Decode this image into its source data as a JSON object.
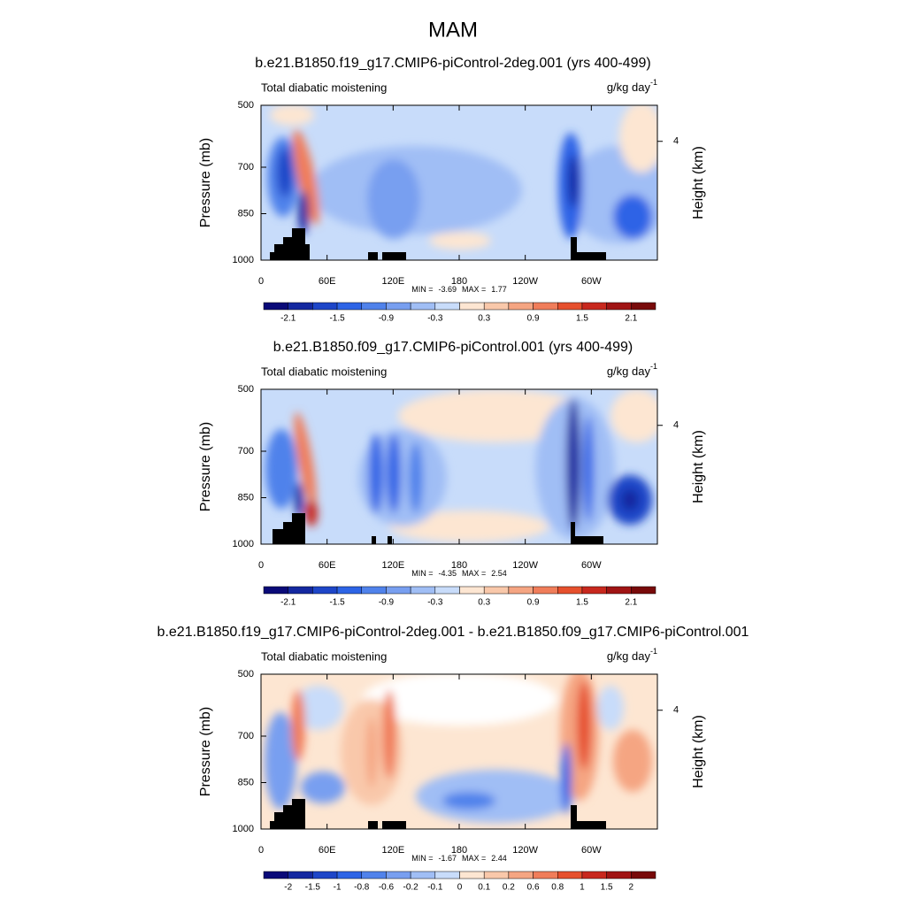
{
  "title": "MAM",
  "chart_data": [
    {
      "type": "contour",
      "title": "b.e21.B1850.f19_g17.CMIP6-piControl-2deg.001 (yrs 400-499)",
      "left_label": "Total diabatic moistening",
      "units": "g/kg day",
      "units_exponent": "-1",
      "ylabel": "Pressure (mb)",
      "y2label": "Height (km)",
      "xlim": [
        0,
        360
      ],
      "xticks": [
        0,
        {
          "value": 60,
          "label": "60E"
        },
        {
          "value": 120,
          "label": "120E"
        },
        180,
        {
          "value": 240,
          "label": "120W"
        },
        {
          "value": 300,
          "label": "60W"
        }
      ],
      "ylim": [
        1000,
        500
      ],
      "yticks": [
        500,
        700,
        850,
        1000
      ],
      "y2ticks": [
        4
      ],
      "min_label": "MIN =",
      "min": -3.69,
      "max_label": "MAX =",
      "max": 1.77,
      "colorbar": {
        "levels": [
          -2.1,
          -1.5,
          -0.9,
          -0.3,
          0.3,
          0.9,
          1.5,
          2.1
        ],
        "colors": [
          "#0a0a78",
          "#1428a0",
          "#1e46c8",
          "#2d64e6",
          "#5082eb",
          "#789ff0",
          "#a0bef5",
          "#c8dcfa",
          "#fde6d2",
          "#f9c8aa",
          "#f5a582",
          "#f07d5a",
          "#e6502d",
          "#c8281e",
          "#a01414",
          "#780a0a"
        ]
      }
    },
    {
      "type": "contour",
      "title": "b.e21.B1850.f09_g17.CMIP6-piControl.001 (yrs 400-499)",
      "left_label": "Total diabatic moistening",
      "units": "g/kg day",
      "units_exponent": "-1",
      "ylabel": "Pressure (mb)",
      "y2label": "Height (km)",
      "xlim": [
        0,
        360
      ],
      "xticks": [
        0,
        {
          "value": 60,
          "label": "60E"
        },
        {
          "value": 120,
          "label": "120E"
        },
        180,
        {
          "value": 240,
          "label": "120W"
        },
        {
          "value": 300,
          "label": "60W"
        }
      ],
      "ylim": [
        1000,
        500
      ],
      "yticks": [
        500,
        700,
        850,
        1000
      ],
      "y2ticks": [
        4
      ],
      "min_label": "MIN =",
      "min": -4.35,
      "max_label": "MAX =",
      "max": 2.54,
      "colorbar": {
        "levels": [
          -2.1,
          -1.5,
          -0.9,
          -0.3,
          0.3,
          0.9,
          1.5,
          2.1
        ],
        "colors": [
          "#0a0a78",
          "#1428a0",
          "#1e46c8",
          "#2d64e6",
          "#5082eb",
          "#789ff0",
          "#a0bef5",
          "#c8dcfa",
          "#fde6d2",
          "#f9c8aa",
          "#f5a582",
          "#f07d5a",
          "#e6502d",
          "#c8281e",
          "#a01414",
          "#780a0a"
        ]
      }
    },
    {
      "type": "contour",
      "title": "b.e21.B1850.f19_g17.CMIP6-piControl-2deg.001 - b.e21.B1850.f09_g17.CMIP6-piControl.001",
      "left_label": "Total diabatic moistening",
      "units": "g/kg day",
      "units_exponent": "-1",
      "ylabel": "Pressure (mb)",
      "y2label": "Height (km)",
      "xlim": [
        0,
        360
      ],
      "xticks": [
        0,
        {
          "value": 60,
          "label": "60E"
        },
        {
          "value": 120,
          "label": "120E"
        },
        180,
        {
          "value": 240,
          "label": "120W"
        },
        {
          "value": 300,
          "label": "60W"
        }
      ],
      "ylim": [
        1000,
        500
      ],
      "yticks": [
        500,
        700,
        850,
        1000
      ],
      "y2ticks": [
        4
      ],
      "min_label": "MIN =",
      "min": -1.67,
      "max_label": "MAX =",
      "max": 2.44,
      "colorbar": {
        "levels": [
          -2,
          -1.5,
          -1,
          -0.8,
          -0.6,
          -0.2,
          -0.1,
          0,
          0.1,
          0.2,
          0.6,
          0.8,
          1,
          1.5,
          2
        ],
        "colors": [
          "#0a0a78",
          "#1428a0",
          "#1e46c8",
          "#2d64e6",
          "#5082eb",
          "#789ff0",
          "#a0bef5",
          "#c8dcfa",
          "#fde6d2",
          "#f9c8aa",
          "#f5a582",
          "#f07d5a",
          "#e6502d",
          "#c8281e",
          "#a01414",
          "#780a0a"
        ]
      }
    }
  ]
}
